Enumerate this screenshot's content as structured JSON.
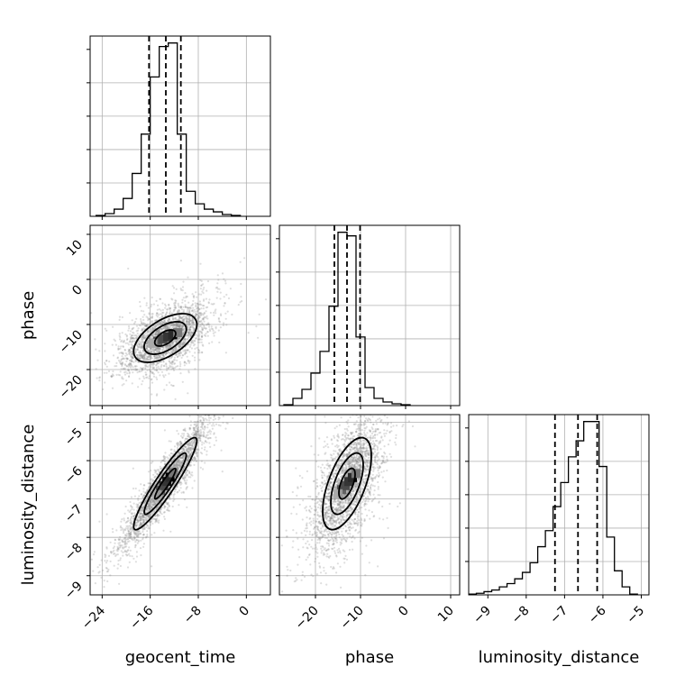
{
  "chart_data": {
    "type": "corner",
    "parameters": [
      {
        "name": "geocent_time",
        "label": "geocent_time",
        "range": [
          -26,
          4
        ],
        "ticks": [
          -24,
          -16,
          -8,
          0
        ],
        "quantiles": [
          -16.2,
          -13.4,
          -10.9
        ],
        "histogram": {
          "bin_edges": [
            -25,
            -23.5,
            -22,
            -20.5,
            -19,
            -17.5,
            -16,
            -14.5,
            -13,
            -11.5,
            -10,
            -8.5,
            -7,
            -5.5,
            -4,
            -2.5,
            -1
          ],
          "counts": [
            0.5,
            1.5,
            4,
            10,
            24,
            46,
            78,
            95,
            97,
            46,
            14,
            7,
            4,
            2.5,
            1,
            0.5
          ]
        }
      },
      {
        "name": "phase",
        "label": "phase",
        "range": [
          -28,
          12
        ],
        "ticks": [
          -20,
          -10,
          0,
          10
        ],
        "quantiles": [
          -15.8,
          -13,
          -10.1
        ],
        "histogram": {
          "bin_edges": [
            -27,
            -25,
            -23,
            -21,
            -19,
            -17,
            -15,
            -13,
            -11,
            -9,
            -7,
            -5,
            -3,
            -1,
            1
          ],
          "counts": [
            0.5,
            4,
            9,
            18,
            30,
            55,
            96,
            94,
            38,
            10,
            4,
            2,
            1,
            0.5
          ]
        }
      },
      {
        "name": "luminosity_distance",
        "label": "luminosity_distance",
        "range": [
          -9.5,
          -4.8
        ],
        "ticks": [
          -9,
          -8,
          -7,
          -6,
          -5
        ],
        "quantiles": [
          -7.25,
          -6.65,
          -6.15
        ],
        "histogram": {
          "bin_edges": [
            -9.5,
            -9.3,
            -9.1,
            -8.9,
            -8.7,
            -8.5,
            -8.3,
            -8.1,
            -7.9,
            -7.7,
            -7.5,
            -7.3,
            -7.1,
            -6.9,
            -6.7,
            -6.5,
            -6.3,
            -6.1,
            -5.9,
            -5.7,
            -5.5,
            -5.3,
            -5.1
          ],
          "counts": [
            0.5,
            1,
            2,
            3,
            5,
            7,
            10,
            14,
            20,
            30,
            40,
            55,
            70,
            86,
            96,
            108,
            108,
            80,
            36,
            15,
            5,
            0.5
          ]
        }
      }
    ],
    "pairs": [
      {
        "x": "geocent_time",
        "y": "phase",
        "center": [
          -13.5,
          -13
        ],
        "sigma": [
          3.5,
          3.6
        ],
        "rho": 0.55,
        "contours": [
          0.5,
          1.0,
          1.5
        ]
      },
      {
        "x": "geocent_time",
        "y": "luminosity_distance",
        "center": [
          -13.5,
          -6.6
        ],
        "sigma": [
          3.5,
          0.8
        ],
        "rho": 0.93,
        "contours": [
          0.5,
          1.0,
          1.5
        ]
      },
      {
        "x": "phase",
        "y": "luminosity_distance",
        "center": [
          -13,
          -6.6
        ],
        "sigma": [
          3.6,
          0.8
        ],
        "rho": 0.6,
        "contours": [
          0.5,
          1.0,
          1.5
        ]
      }
    ],
    "grid": true,
    "quantile_line_style": "dashed",
    "xlabel_bottom": [
      "geocent_time",
      "phase",
      "luminosity_distance"
    ],
    "ylabel_left": [
      "phase",
      "luminosity_distance"
    ]
  }
}
